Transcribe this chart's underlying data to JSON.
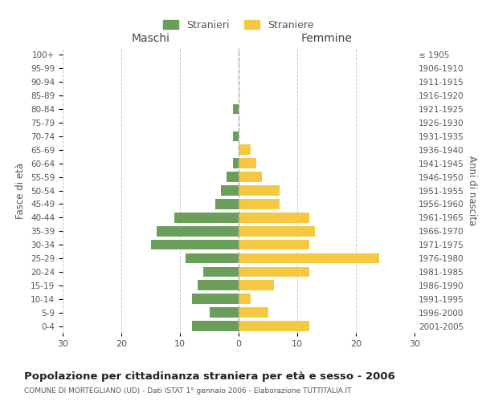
{
  "age_groups": [
    "0-4",
    "5-9",
    "10-14",
    "15-19",
    "20-24",
    "25-29",
    "30-34",
    "35-39",
    "40-44",
    "45-49",
    "50-54",
    "55-59",
    "60-64",
    "65-69",
    "70-74",
    "75-79",
    "80-84",
    "85-89",
    "90-94",
    "95-99",
    "100+"
  ],
  "birth_years": [
    "2001-2005",
    "1996-2000",
    "1991-1995",
    "1986-1990",
    "1981-1985",
    "1976-1980",
    "1971-1975",
    "1966-1970",
    "1961-1965",
    "1956-1960",
    "1951-1955",
    "1946-1950",
    "1941-1945",
    "1936-1940",
    "1931-1935",
    "1926-1930",
    "1921-1925",
    "1916-1920",
    "1911-1915",
    "1906-1910",
    "≤ 1905"
  ],
  "maschi": [
    8,
    5,
    8,
    7,
    6,
    9,
    15,
    14,
    11,
    4,
    3,
    2,
    1,
    0,
    1,
    0,
    1,
    0,
    0,
    0,
    0
  ],
  "femmine": [
    12,
    5,
    2,
    6,
    12,
    24,
    12,
    13,
    12,
    7,
    7,
    4,
    3,
    2,
    0,
    0,
    0,
    0,
    0,
    0,
    0
  ],
  "maschi_color": "#6a9e5a",
  "femmine_color": "#f5c842",
  "title": "Popolazione per cittadinanza straniera per età e sesso - 2006",
  "subtitle": "COMUNE DI MORTEGLIANO (UD) - Dati ISTAT 1° gennaio 2006 - Elaborazione TUTTITALIA.IT",
  "ylabel_left": "Fasce di età",
  "ylabel_right": "Anni di nascita",
  "xlabel_left": "Maschi",
  "xlabel_right": "Femmine",
  "legend_maschi": "Stranieri",
  "legend_femmine": "Straniere",
  "xlim": 30,
  "background_color": "#ffffff",
  "grid_color": "#cccccc",
  "text_color": "#555555"
}
